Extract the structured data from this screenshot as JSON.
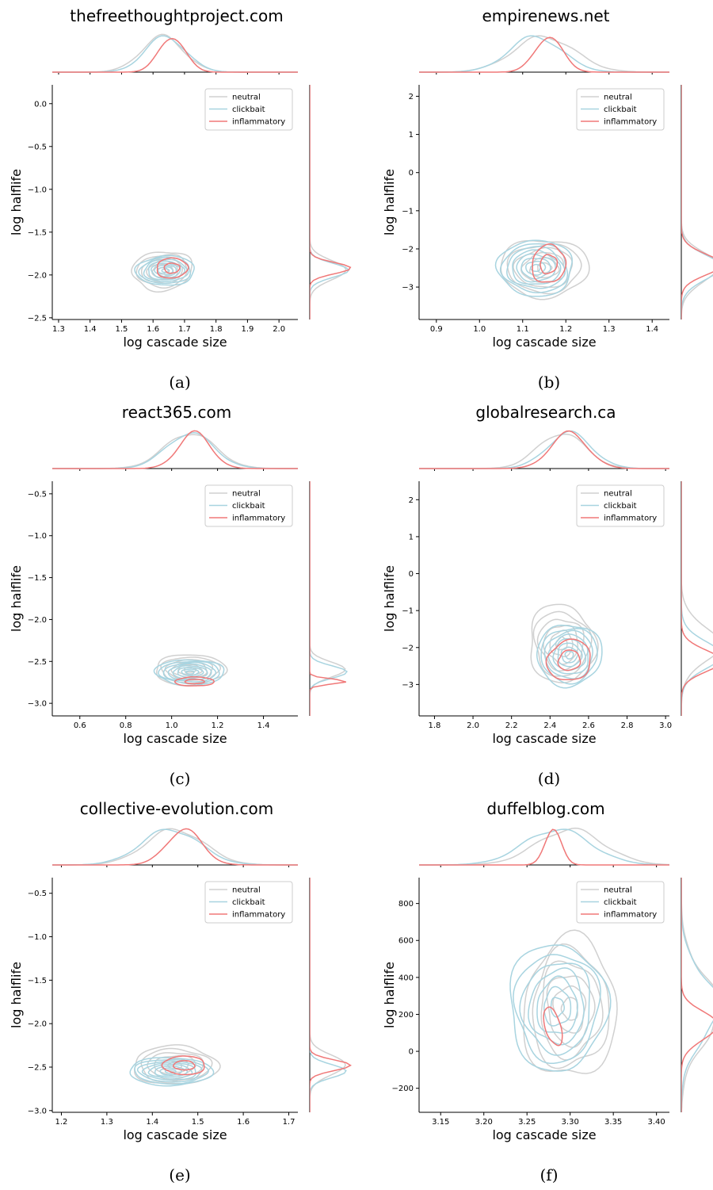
{
  "figure": {
    "colors": {
      "neutral": "#d0d0d0",
      "clickbait": "#a8d4e0",
      "inflammatory": "#f07878"
    },
    "legend_placement": "top-right"
  },
  "chart_data": [
    {
      "type": "contour",
      "panel": "(a)",
      "title": "thefreethoughtproject.com",
      "xlabel": "log cascade size",
      "ylabel": "log halflife",
      "xlim": [
        1.28,
        2.06
      ],
      "ylim": [
        -2.52,
        0.22
      ],
      "xticks": [
        1.3,
        1.4,
        1.5,
        1.6,
        1.7,
        1.8,
        1.9,
        2.0
      ],
      "xtick_labels": [
        "1.3",
        "1.4",
        "1.5",
        "1.6",
        "1.7",
        "1.8",
        "1.9",
        "2.0"
      ],
      "yticks": [
        -2.5,
        -2.0,
        -1.5,
        -1.0,
        -0.5,
        0.0
      ],
      "ytick_labels": [
        "−2.5",
        "−2.0",
        "−1.5",
        "−1.0",
        "−0.5",
        "0.0"
      ],
      "legend": [
        "neutral",
        "clickbait",
        "inflammatory"
      ],
      "series": [
        {
          "name": "neutral",
          "center": [
            1.63,
            -1.95
          ],
          "spread": [
            0.21,
            0.5
          ],
          "tilt": 0.12,
          "levels": 6,
          "wobble": 0.12
        },
        {
          "name": "clickbait",
          "center": [
            1.64,
            -1.95
          ],
          "spread": [
            0.2,
            0.37
          ],
          "tilt": 0.0,
          "levels": 8,
          "wobble": 0.09
        },
        {
          "name": "inflammatory",
          "center": [
            1.66,
            -1.92
          ],
          "spread": [
            0.13,
            0.3
          ],
          "tilt": 0.05,
          "levels": 2,
          "wobble": 0.08
        }
      ]
    },
    {
      "type": "contour",
      "panel": "(b)",
      "title": "empirenews.net",
      "xlabel": "log cascade size",
      "ylabel": "log halflife",
      "xlim": [
        0.86,
        1.44
      ],
      "ylim": [
        -3.85,
        2.3
      ],
      "xticks": [
        0.9,
        1.0,
        1.1,
        1.2,
        1.3,
        1.4
      ],
      "xtick_labels": [
        "0.9",
        "1.0",
        "1.1",
        "1.2",
        "1.3",
        "1.4"
      ],
      "yticks": [
        -3,
        -2,
        -1,
        0,
        1,
        2
      ],
      "ytick_labels": [
        "−3",
        "−2",
        "−1",
        "0",
        "1",
        "2"
      ],
      "legend": [
        "neutral",
        "clickbait",
        "inflammatory"
      ],
      "series": [
        {
          "name": "neutral",
          "center": [
            1.15,
            -2.5
          ],
          "spread": [
            0.22,
            1.7
          ],
          "tilt": 0.0,
          "levels": 6,
          "wobble": 0.12
        },
        {
          "name": "clickbait",
          "center": [
            1.13,
            -2.5
          ],
          "spread": [
            0.19,
            1.55
          ],
          "tilt": 0.0,
          "levels": 8,
          "wobble": 0.1
        },
        {
          "name": "inflammatory",
          "center": [
            1.16,
            -2.4
          ],
          "spread": [
            0.1,
            1.3
          ],
          "tilt": 0.1,
          "levels": 2,
          "wobble": 0.1
        }
      ]
    },
    {
      "type": "contour",
      "panel": "(c)",
      "title": "react365.com",
      "xlabel": "log cascade size",
      "ylabel": "log halflife",
      "xlim": [
        0.48,
        1.55
      ],
      "ylim": [
        -3.15,
        -0.35
      ],
      "xticks": [
        0.6,
        0.8,
        1.0,
        1.2,
        1.4
      ],
      "xtick_labels": [
        "0.6",
        "0.8",
        "1.0",
        "1.2",
        "1.4"
      ],
      "yticks": [
        -3.0,
        -2.5,
        -2.0,
        -1.5,
        -1.0,
        -0.5
      ],
      "ytick_labels": [
        "−3.0",
        "−2.5",
        "−2.0",
        "−1.5",
        "−1.0",
        "−0.5"
      ],
      "legend": [
        "neutral",
        "clickbait",
        "inflammatory"
      ],
      "series": [
        {
          "name": "neutral",
          "center": [
            1.08,
            -2.6
          ],
          "spread": [
            0.34,
            0.4
          ],
          "tilt": 0.0,
          "levels": 6,
          "wobble": 0.1
        },
        {
          "name": "clickbait",
          "center": [
            1.08,
            -2.63
          ],
          "spread": [
            0.32,
            0.33
          ],
          "tilt": 0.0,
          "levels": 8,
          "wobble": 0.09
        },
        {
          "name": "inflammatory",
          "center": [
            1.1,
            -2.74
          ],
          "spread": [
            0.22,
            0.14
          ],
          "tilt": 0.0,
          "levels": 2,
          "wobble": 0.07
        }
      ]
    },
    {
      "type": "contour",
      "panel": "(d)",
      "title": "globalresearch.ca",
      "xlabel": "log cascade size",
      "ylabel": "log halflife",
      "xlim": [
        1.72,
        3.02
      ],
      "ylim": [
        -3.85,
        2.5
      ],
      "xticks": [
        1.8,
        2.0,
        2.2,
        2.4,
        2.6,
        2.8,
        3.0
      ],
      "xtick_labels": [
        "1.8",
        "2.0",
        "2.2",
        "2.4",
        "2.6",
        "2.8",
        "3.0"
      ],
      "yticks": [
        -3,
        -2,
        -1,
        0,
        1,
        2
      ],
      "ytick_labels": [
        "−3",
        "−2",
        "−1",
        "0",
        "1",
        "2"
      ],
      "legend": [
        "neutral",
        "clickbait",
        "inflammatory"
      ],
      "series": [
        {
          "name": "neutral",
          "center": [
            2.46,
            -1.9
          ],
          "spread": [
            0.38,
            2.3
          ],
          "tilt": 0.0,
          "levels": 6,
          "wobble": 0.14
        },
        {
          "name": "clickbait",
          "center": [
            2.5,
            -2.2
          ],
          "spread": [
            0.36,
            1.8
          ],
          "tilt": 0.0,
          "levels": 8,
          "wobble": 0.1
        },
        {
          "name": "inflammatory",
          "center": [
            2.5,
            -2.35
          ],
          "spread": [
            0.3,
            1.4
          ],
          "tilt": 0.1,
          "levels": 2,
          "wobble": 0.1
        }
      ]
    },
    {
      "type": "contour",
      "panel": "(e)",
      "title": "collective-evolution.com",
      "xlabel": "log cascade size",
      "ylabel": "log halflife",
      "xlim": [
        1.18,
        1.72
      ],
      "ylim": [
        -3.02,
        -0.32
      ],
      "xticks": [
        1.2,
        1.3,
        1.4,
        1.5,
        1.6,
        1.7
      ],
      "xtick_labels": [
        "1.2",
        "1.3",
        "1.4",
        "1.5",
        "1.6",
        "1.7"
      ],
      "yticks": [
        -3.0,
        -2.5,
        -2.0,
        -1.5,
        -1.0,
        -0.5
      ],
      "ytick_labels": [
        "−3.0",
        "−2.5",
        "−2.0",
        "−1.5",
        "−1.0",
        "−0.5"
      ],
      "legend": [
        "neutral",
        "clickbait",
        "inflammatory"
      ],
      "series": [
        {
          "name": "neutral",
          "center": [
            1.45,
            -2.48
          ],
          "spread": [
            0.2,
            0.5
          ],
          "tilt": 0.0,
          "levels": 6,
          "wobble": 0.12
        },
        {
          "name": "clickbait",
          "center": [
            1.44,
            -2.55
          ],
          "spread": [
            0.2,
            0.34
          ],
          "tilt": 0.0,
          "levels": 8,
          "wobble": 0.08
        },
        {
          "name": "inflammatory",
          "center": [
            1.47,
            -2.48
          ],
          "spread": [
            0.12,
            0.28
          ],
          "tilt": 0.0,
          "levels": 2,
          "wobble": 0.07
        }
      ]
    },
    {
      "type": "contour",
      "panel": "(f)",
      "title": "duffelblog.com",
      "xlabel": "log cascade size",
      "ylabel": "log halflife",
      "xlim": [
        3.125,
        3.415
      ],
      "ylim": [
        -330,
        940
      ],
      "xticks": [
        3.15,
        3.2,
        3.25,
        3.3,
        3.35,
        3.4
      ],
      "xtick_labels": [
        "3.15",
        "3.20",
        "3.25",
        "3.30",
        "3.35",
        "3.40"
      ],
      "yticks": [
        -200,
        0,
        200,
        400,
        600,
        800
      ],
      "ytick_labels": [
        "−200",
        "0",
        "200",
        "400",
        "600",
        "800"
      ],
      "legend": [
        "neutral",
        "clickbait",
        "inflammatory"
      ],
      "series": [
        {
          "name": "neutral",
          "center": [
            3.3,
            230
          ],
          "spread": [
            0.12,
            820
          ],
          "tilt": 0.0,
          "levels": 6,
          "wobble": 0.16
        },
        {
          "name": "clickbait",
          "center": [
            3.285,
            240
          ],
          "spread": [
            0.12,
            760
          ],
          "tilt": 0.0,
          "levels": 7,
          "wobble": 0.13
        },
        {
          "name": "inflammatory",
          "center": [
            3.28,
            135
          ],
          "spread": [
            0.03,
            330
          ],
          "tilt": -0.6,
          "levels": 1,
          "wobble": 0.06
        }
      ]
    }
  ],
  "captions": [
    "(a)",
    "(b)",
    "(c)",
    "(d)",
    "(e)",
    "(f)"
  ]
}
